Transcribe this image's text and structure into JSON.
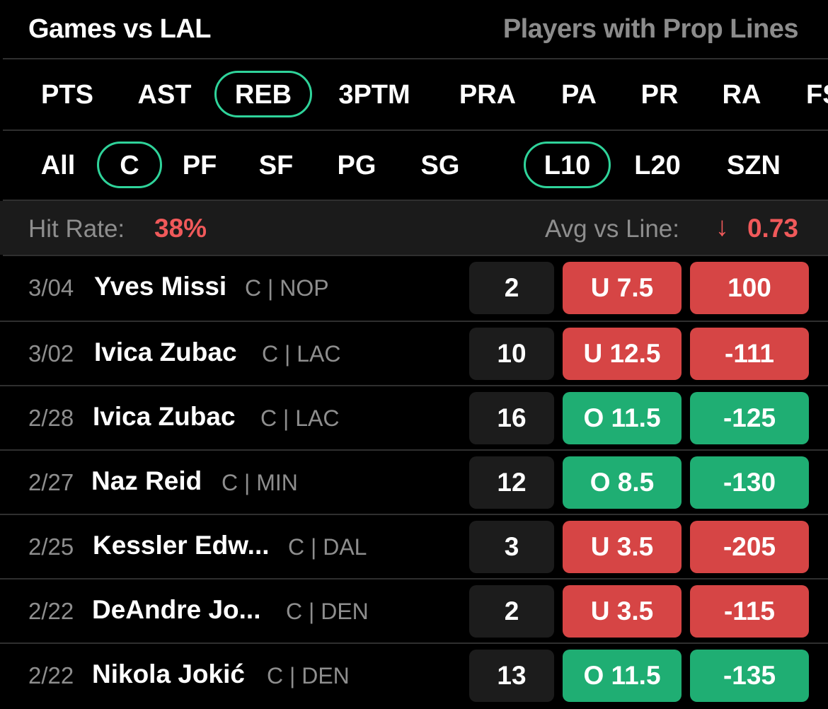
{
  "header": {
    "title": "Games vs LAL",
    "right_link": "Players with Prop Lines"
  },
  "stat_tabs": [
    "PTS",
    "AST",
    "REB",
    "3PTM",
    "PRA",
    "PA",
    "PR",
    "RA",
    "FS"
  ],
  "stat_tab_active": "REB",
  "positions": [
    "All",
    "C",
    "PF",
    "SF",
    "PG",
    "SG"
  ],
  "position_active": "C",
  "ranges": [
    "L10",
    "L20",
    "SZN"
  ],
  "range_active": "L10",
  "summary": {
    "hit_rate_label": "Hit Rate:",
    "hit_rate_value": "38%",
    "avg_label": "Avg vs Line:",
    "avg_arrow": "↓",
    "avg_value": "0.73"
  },
  "colors": {
    "accent": "#2fd39a",
    "under": "#d64545",
    "over": "#1fae73",
    "negative_text": "#f0595a"
  },
  "games": [
    {
      "date": "3/04",
      "name": "Yves Missi",
      "team": "C | NOP",
      "value": "2",
      "line": "U 7.5",
      "odds": "100",
      "result": "under"
    },
    {
      "date": "3/02",
      "name": "Ivica Zubac",
      "team": "C | LAC",
      "value": "10",
      "line": "U 12.5",
      "odds": "-111",
      "result": "under"
    },
    {
      "date": "2/28",
      "name": "Ivica Zubac",
      "team": "C | LAC",
      "value": "16",
      "line": "O 11.5",
      "odds": "-125",
      "result": "over"
    },
    {
      "date": "2/27",
      "name": "Naz Reid",
      "team": "C | MIN",
      "value": "12",
      "line": "O 8.5",
      "odds": "-130",
      "result": "over"
    },
    {
      "date": "2/25",
      "name": "Kessler Edw...",
      "team": "C | DAL",
      "value": "3",
      "line": "U 3.5",
      "odds": "-205",
      "result": "under"
    },
    {
      "date": "2/22",
      "name": "DeAndre Jo...",
      "team": "C | DEN",
      "value": "2",
      "line": "U 3.5",
      "odds": "-115",
      "result": "under"
    },
    {
      "date": "2/22",
      "name": "Nikola Jokić",
      "team": "C | DEN",
      "value": "13",
      "line": "O 11.5",
      "odds": "-135",
      "result": "over"
    }
  ]
}
